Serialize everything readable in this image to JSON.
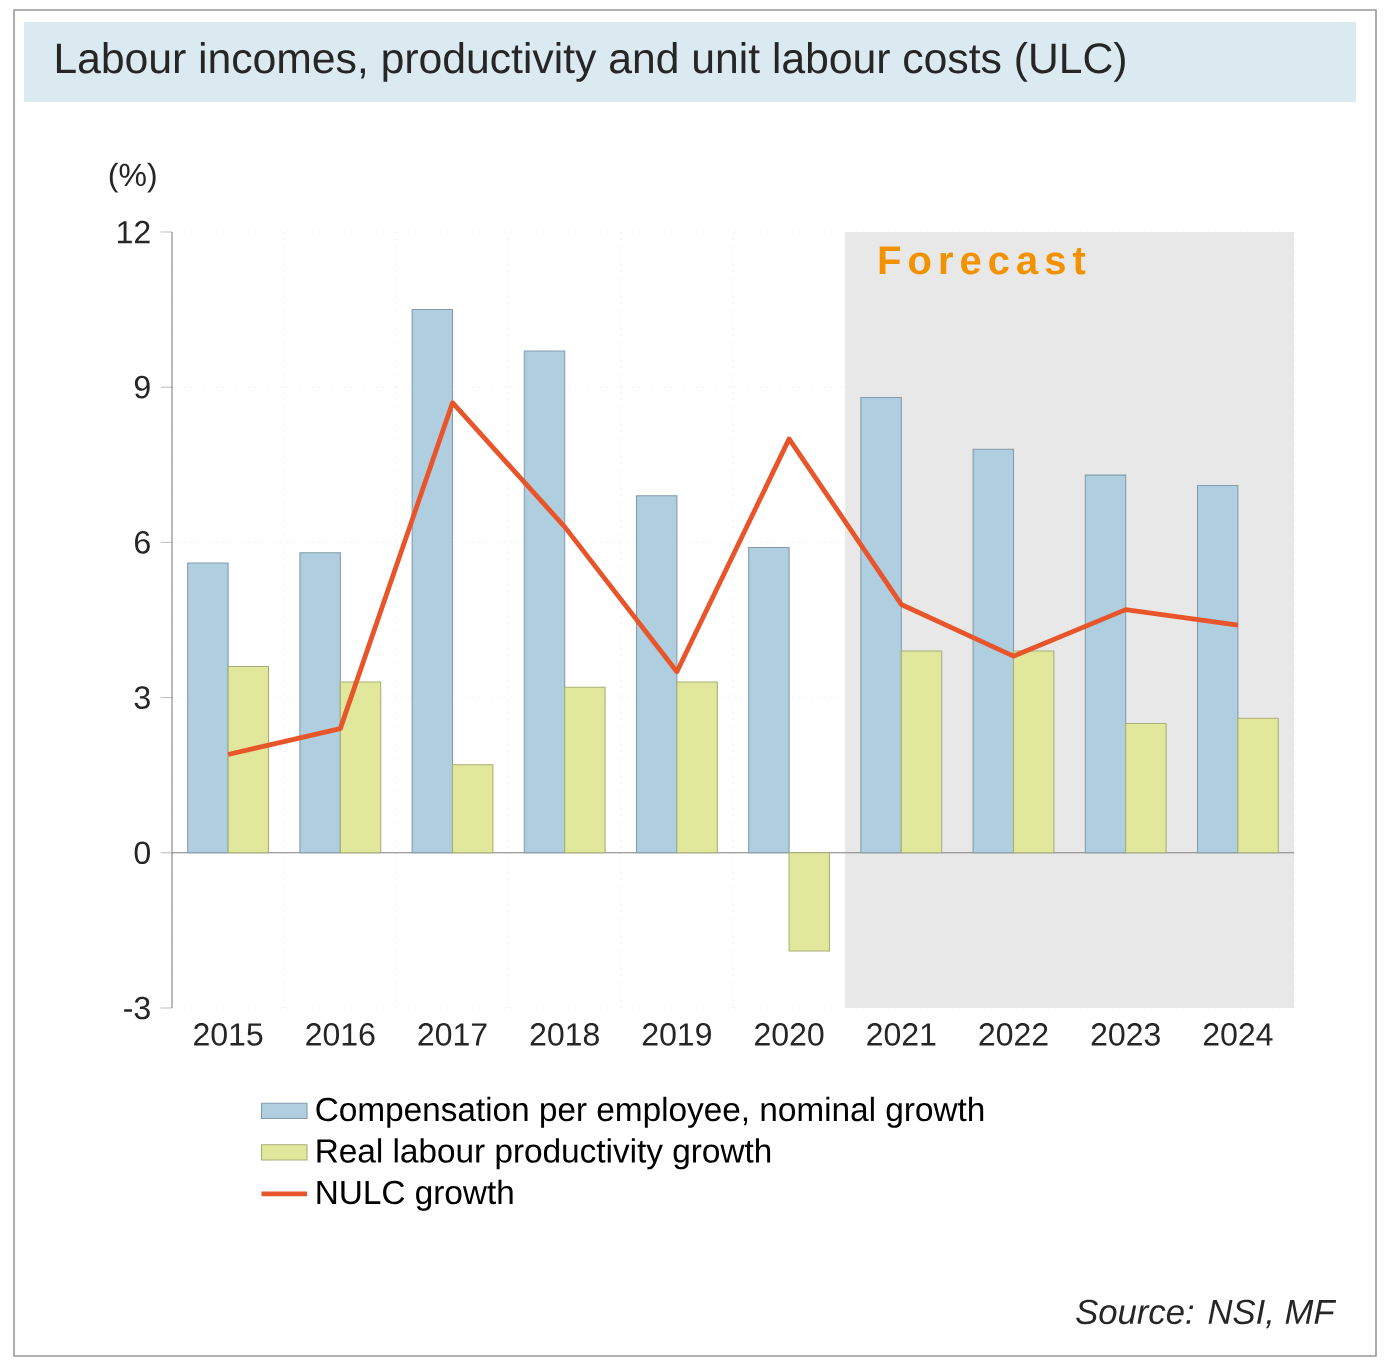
{
  "chart_data": {
    "type": "bar",
    "title": "Labour incomes, productivity and unit labour costs (ULC)",
    "ylabel": "(%)",
    "categories": [
      "2015",
      "2016",
      "2017",
      "2018",
      "2019",
      "2020",
      "2021",
      "2022",
      "2023",
      "2024"
    ],
    "series": [
      {
        "name": "Compensation per employee, nominal growth",
        "color": "#afcfe1",
        "values": [
          5.6,
          5.8,
          10.5,
          9.7,
          6.9,
          5.9,
          8.8,
          7.8,
          7.3,
          7.1
        ]
      },
      {
        "name": "Real labour productivity growth",
        "color": "#e1e89c",
        "values": [
          3.6,
          3.3,
          1.7,
          3.2,
          3.3,
          -1.9,
          3.9,
          3.9,
          2.5,
          2.6
        ]
      },
      {
        "name": "NULC growth",
        "type": "line",
        "color": "#e8552a",
        "values": [
          1.9,
          2.4,
          8.7,
          6.3,
          3.5,
          8.0,
          4.8,
          3.8,
          4.7,
          4.4
        ]
      }
    ],
    "ylim": [
      -3,
      12
    ],
    "yticks": [
      -3,
      0,
      3,
      6,
      9,
      12
    ],
    "grid": true,
    "legend": "bottom",
    "bands": [
      {
        "axis": "x",
        "from": "2021",
        "to": "2024",
        "label": "Forecast",
        "color": "#e8e8e8"
      }
    ],
    "annotations": [
      "Source: NSI, MF"
    ]
  }
}
